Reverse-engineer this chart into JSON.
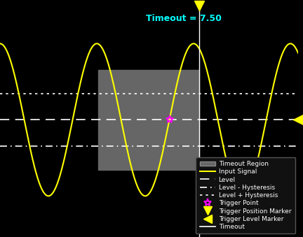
{
  "title": "Timeout = 7.50",
  "title_color": "#00FFFF",
  "background_color": "#000000",
  "plot_background": "#000000",
  "signal_color": "#FFFF00",
  "level_color": "#FFFFFF",
  "trigger_point_color": "#FF00FF",
  "marker_color": "#FFFF00",
  "timeout_region_color": "#666666",
  "timeout_line_color": "#FFFFFF",
  "level": 0.0,
  "level_hyst_minus": -0.45,
  "level_hyst_plus": 0.45,
  "signal_amplitude": 1.3,
  "signal_freq": 0.22,
  "signal_phase": 1.57,
  "timeout_start_x": 4.6,
  "timeout_end_x": 9.35,
  "trigger_x": 9.35,
  "xlim": [
    0,
    14.0
  ],
  "ylim": [
    -2.0,
    2.0
  ],
  "timeout_region_ymin": -0.85,
  "timeout_region_ymax": 0.85,
  "legend_labels": [
    "Timeout Region",
    "Input Signal",
    "Level",
    "Level - Hysteresis",
    "Level + Hysteresis",
    "Trigger Point",
    "Trigger Position Marker",
    "Trigger Level Marker",
    "Timeout"
  ]
}
